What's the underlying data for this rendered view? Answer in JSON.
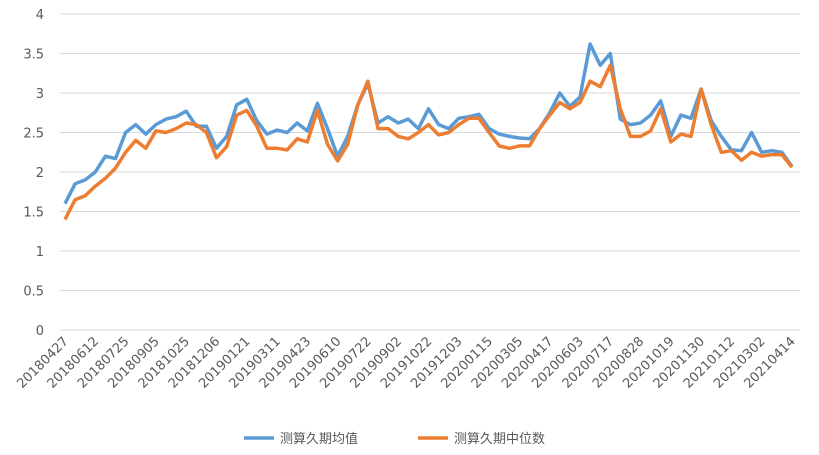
{
  "chart_data": {
    "type": "line",
    "categories": [
      "20180427",
      null,
      null,
      "20180612",
      null,
      null,
      "20180725",
      null,
      null,
      "20180905",
      null,
      null,
      "20181025",
      null,
      null,
      "20181206",
      null,
      null,
      "20190121",
      null,
      null,
      "20190311",
      null,
      null,
      "20190423",
      null,
      null,
      "20190610",
      null,
      null,
      "20190722",
      null,
      null,
      "20190902",
      null,
      null,
      "20191022",
      null,
      null,
      "20191203",
      null,
      null,
      "20200115",
      null,
      null,
      "20200305",
      null,
      null,
      "20200417",
      null,
      null,
      "20200603",
      null,
      null,
      "20200717",
      null,
      null,
      "20200828",
      null,
      null,
      "20201019",
      null,
      null,
      "20201130",
      null,
      null,
      "20210112",
      null,
      null,
      "20210302",
      null,
      null,
      "20210414"
    ],
    "series": [
      {
        "name": "测算久期均值",
        "color": "#5b9bd5",
        "values": [
          1.6,
          1.85,
          1.9,
          2.0,
          2.2,
          2.17,
          2.5,
          2.6,
          2.48,
          2.6,
          2.67,
          2.7,
          2.77,
          2.58,
          2.58,
          2.3,
          2.45,
          2.85,
          2.92,
          2.65,
          2.48,
          2.53,
          2.5,
          2.62,
          2.52,
          2.87,
          2.55,
          2.2,
          2.45,
          2.85,
          3.12,
          2.62,
          2.7,
          2.62,
          2.67,
          2.55,
          2.8,
          2.6,
          2.55,
          2.68,
          2.7,
          2.73,
          2.55,
          2.48,
          2.45,
          2.43,
          2.42,
          2.55,
          2.75,
          3.0,
          2.83,
          2.95,
          3.62,
          3.35,
          3.5,
          2.67,
          2.6,
          2.62,
          2.72,
          2.9,
          2.45,
          2.72,
          2.68,
          3.05,
          2.65,
          2.45,
          2.28,
          2.27,
          2.5,
          2.25,
          2.27,
          2.25,
          2.07
        ]
      },
      {
        "name": "测算久期中位数",
        "color": "#ed7d31",
        "values": [
          1.4,
          1.65,
          1.7,
          1.82,
          1.92,
          2.05,
          2.25,
          2.4,
          2.3,
          2.52,
          2.5,
          2.55,
          2.62,
          2.6,
          2.5,
          2.18,
          2.32,
          2.72,
          2.78,
          2.58,
          2.3,
          2.3,
          2.28,
          2.42,
          2.38,
          2.78,
          2.35,
          2.14,
          2.35,
          2.85,
          3.15,
          2.55,
          2.55,
          2.45,
          2.42,
          2.5,
          2.6,
          2.47,
          2.5,
          2.6,
          2.68,
          2.68,
          2.5,
          2.33,
          2.3,
          2.33,
          2.33,
          2.55,
          2.72,
          2.88,
          2.8,
          2.88,
          3.15,
          3.08,
          3.35,
          2.8,
          2.45,
          2.45,
          2.52,
          2.8,
          2.38,
          2.48,
          2.45,
          3.05,
          2.6,
          2.25,
          2.27,
          2.15,
          2.25,
          2.2,
          2.22,
          2.22,
          2.06
        ]
      }
    ],
    "ylim": [
      0,
      4
    ],
    "yticks": [
      0,
      0.5,
      1,
      1.5,
      2,
      2.5,
      3,
      3.5,
      4
    ],
    "grid": true,
    "legend": "bottom"
  }
}
